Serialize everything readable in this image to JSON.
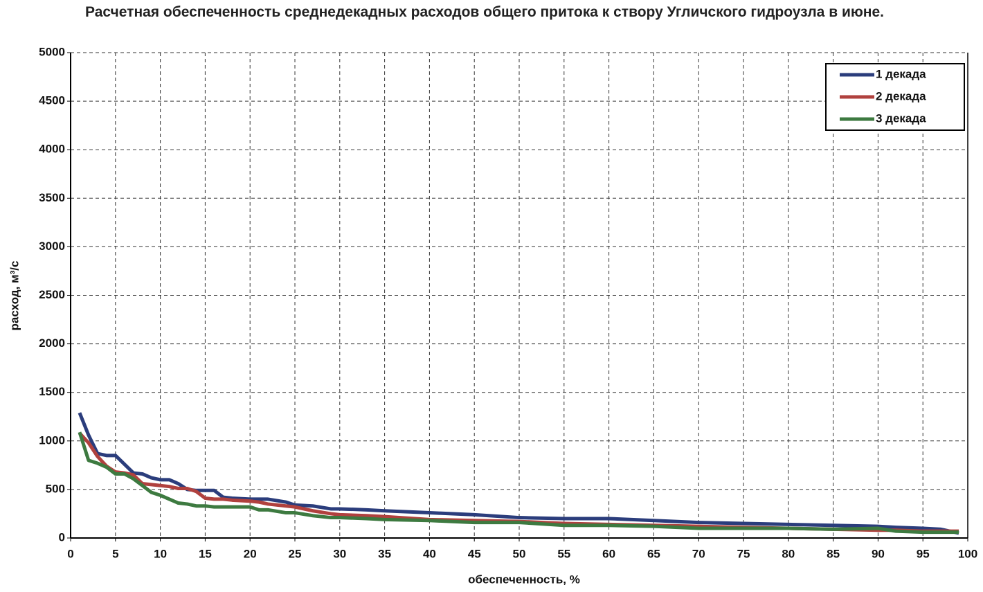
{
  "chart_data": {
    "type": "line",
    "title": "Расчетная обеспеченность среднедекадных расходов общего притока к створу Угличского гидроузла в июне.",
    "x_label": "обеспеченность, %",
    "y_label": "расход, м³/с",
    "x": [
      1,
      2,
      3,
      4,
      5,
      6,
      7,
      8,
      9,
      10,
      11,
      12,
      13,
      14,
      15,
      16,
      17,
      18,
      20,
      21,
      22,
      24,
      25,
      27,
      29,
      30,
      33,
      35,
      40,
      45,
      50,
      55,
      60,
      65,
      70,
      75,
      80,
      85,
      90,
      92,
      95,
      97,
      99
    ],
    "series": [
      {
        "name": "1 декада",
        "color": "#2b3d7c",
        "values": [
          1290,
          1060,
          870,
          850,
          850,
          760,
          670,
          660,
          620,
          600,
          600,
          560,
          500,
          490,
          490,
          490,
          420,
          410,
          400,
          400,
          400,
          370,
          340,
          330,
          300,
          300,
          290,
          280,
          260,
          240,
          210,
          200,
          200,
          180,
          160,
          150,
          140,
          130,
          120,
          110,
          100,
          90,
          50
        ]
      },
      {
        "name": "2 декада",
        "color": "#b0413e",
        "values": [
          1080,
          980,
          840,
          740,
          680,
          670,
          650,
          560,
          550,
          540,
          530,
          510,
          510,
          480,
          410,
          400,
          400,
          390,
          380,
          370,
          350,
          330,
          320,
          280,
          250,
          240,
          230,
          220,
          190,
          180,
          170,
          150,
          140,
          130,
          120,
          110,
          100,
          90,
          80,
          80,
          70,
          70,
          70
        ]
      },
      {
        "name": "3 декада",
        "color": "#3d7a40",
        "values": [
          1090,
          800,
          770,
          730,
          660,
          660,
          610,
          540,
          470,
          440,
          400,
          360,
          350,
          330,
          330,
          320,
          320,
          320,
          320,
          290,
          290,
          260,
          260,
          230,
          210,
          210,
          200,
          190,
          180,
          160,
          160,
          130,
          130,
          120,
          100,
          100,
          100,
          90,
          100,
          70,
          60,
          60,
          60
        ]
      }
    ],
    "xlim": [
      0,
      100
    ],
    "xticks": [
      0,
      5,
      10,
      15,
      20,
      25,
      30,
      35,
      40,
      45,
      50,
      55,
      60,
      65,
      70,
      75,
      80,
      85,
      90,
      95,
      100
    ],
    "ylim": [
      0,
      5000
    ],
    "yticks": [
      0,
      500,
      1000,
      1500,
      2000,
      2500,
      3000,
      3500,
      4000,
      4500,
      5000
    ],
    "grid": true,
    "legend": "upper right"
  }
}
